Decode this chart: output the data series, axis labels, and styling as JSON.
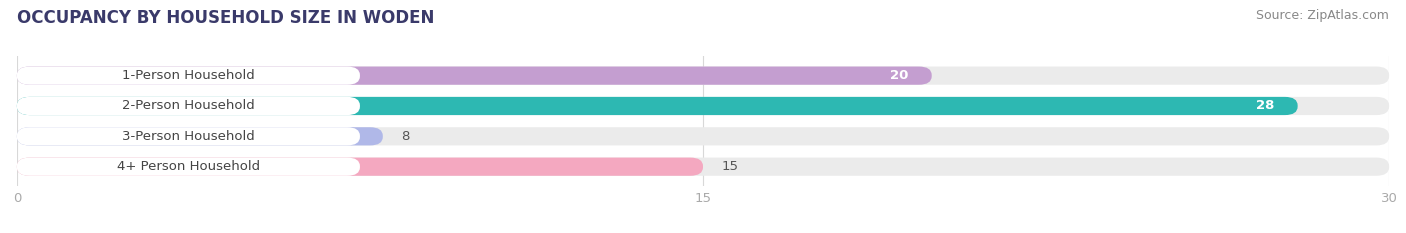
{
  "title": "OCCUPANCY BY HOUSEHOLD SIZE IN WODEN",
  "source": "Source: ZipAtlas.com",
  "categories": [
    "1-Person Household",
    "2-Person Household",
    "3-Person Household",
    "4+ Person Household"
  ],
  "values": [
    20,
    28,
    8,
    15
  ],
  "bar_colors": [
    "#c49ed0",
    "#2db8b2",
    "#b0b8e8",
    "#f4a8c0"
  ],
  "bar_bg_color": "#ebebeb",
  "xlim": [
    0,
    30
  ],
  "xticks": [
    0,
    15,
    30
  ],
  "title_fontsize": 12,
  "source_fontsize": 9,
  "tick_fontsize": 9.5,
  "bar_label_fontsize": 9.5,
  "category_fontsize": 9.5,
  "background_color": "#ffffff",
  "title_color": "#3a3a6a",
  "source_color": "#888888",
  "tick_color": "#aaaaaa",
  "label_white_threshold": 18
}
